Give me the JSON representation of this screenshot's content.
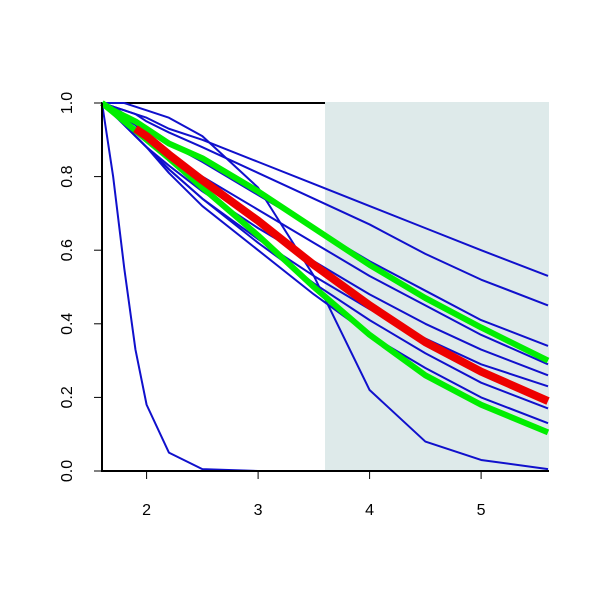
{
  "chart_data": {
    "type": "line",
    "x": [
      1.6,
      1.7,
      1.8,
      1.9,
      2.0,
      2.2,
      2.5,
      3.0,
      3.5,
      4.0,
      4.5,
      5.0,
      5.6
    ],
    "xlim": [
      1.6,
      5.6
    ],
    "xticks": [
      2,
      3,
      4,
      5
    ],
    "ylim": [
      0,
      1
    ],
    "yticks": [
      {
        "value": 0,
        "label": "0.0"
      },
      0.2,
      0.4,
      0.6,
      0.8,
      {
        "value": 1,
        "label": "1.0"
      }
    ],
    "shaded_x_range": [
      3.6,
      5.6
    ],
    "shade_color": "#deeaea",
    "series": [
      {
        "color": "#1010cc",
        "line_width": 2,
        "values": [
          1.0,
          0.8,
          0.55,
          0.33,
          0.18,
          0.05,
          0.005,
          0,
          0,
          0,
          0,
          0,
          0
        ]
      },
      {
        "color": "#1010cc",
        "line_width": 2,
        "values": [
          1.0,
          1.0,
          1.0,
          0.99,
          0.98,
          0.96,
          0.91,
          0.77,
          0.53,
          0.22,
          0.08,
          0.03,
          0.005
        ]
      },
      {
        "color": "#1010cc",
        "line_width": 2,
        "values": [
          1.0,
          0.99,
          0.98,
          0.97,
          0.96,
          0.93,
          0.9,
          0.84,
          0.78,
          0.72,
          0.66,
          0.6,
          0.53
        ]
      },
      {
        "color": "#1010cc",
        "line_width": 2,
        "values": [
          1.0,
          0.99,
          0.98,
          0.97,
          0.95,
          0.92,
          0.88,
          0.81,
          0.74,
          0.67,
          0.59,
          0.52,
          0.45
        ]
      },
      {
        "color": "#1010cc",
        "line_width": 2,
        "values": [
          1.0,
          0.99,
          0.97,
          0.95,
          0.93,
          0.89,
          0.84,
          0.75,
          0.66,
          0.57,
          0.49,
          0.41,
          0.34
        ]
      },
      {
        "color": "#1010cc",
        "line_width": 2,
        "values": [
          1.0,
          0.98,
          0.96,
          0.94,
          0.91,
          0.86,
          0.8,
          0.71,
          0.62,
          0.53,
          0.45,
          0.37,
          0.29
        ]
      },
      {
        "color": "#1010cc",
        "line_width": 2,
        "values": [
          1.0,
          0.97,
          0.94,
          0.91,
          0.88,
          0.83,
          0.76,
          0.66,
          0.57,
          0.48,
          0.4,
          0.33,
          0.26
        ]
      },
      {
        "color": "#1010cc",
        "line_width": 2,
        "values": [
          1.0,
          0.97,
          0.94,
          0.91,
          0.88,
          0.82,
          0.74,
          0.63,
          0.53,
          0.44,
          0.36,
          0.29,
          0.23
        ]
      },
      {
        "color": "#1010cc",
        "line_width": 2,
        "values": [
          1.0,
          0.97,
          0.94,
          0.91,
          0.88,
          0.82,
          0.74,
          0.62,
          0.51,
          0.41,
          0.32,
          0.24,
          0.17
        ]
      },
      {
        "color": "#1010cc",
        "line_width": 2,
        "values": [
          1.0,
          0.97,
          0.94,
          0.91,
          0.88,
          0.81,
          0.72,
          0.6,
          0.48,
          0.37,
          0.28,
          0.2,
          0.13
        ]
      },
      {
        "color": "#00ee00",
        "line_width": 6,
        "values": [
          1.0,
          0.975,
          0.95,
          0.925,
          0.9,
          0.85,
          0.77,
          0.64,
          0.5,
          0.37,
          0.26,
          0.18,
          0.105
        ]
      },
      {
        "color": "#00ee00",
        "line_width": 6,
        "values": [
          1.0,
          0.98,
          0.965,
          0.95,
          0.93,
          0.89,
          0.85,
          0.76,
          0.66,
          0.56,
          0.47,
          0.39,
          0.3
        ]
      },
      {
        "color": "#ee0000",
        "line_width": 8,
        "values": [
          null,
          null,
          null,
          0.93,
          0.91,
          0.86,
          0.79,
          0.68,
          0.56,
          0.45,
          0.35,
          0.27,
          0.19
        ]
      }
    ]
  }
}
